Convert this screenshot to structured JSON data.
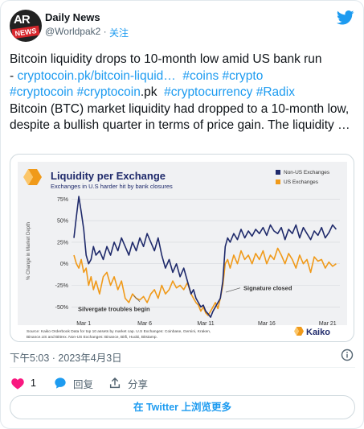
{
  "author": {
    "name": "Daily News",
    "handle": "@Worldpak2",
    "separator": "·",
    "follow_label": "关注",
    "avatar_text_top": "AR",
    "avatar_text_bottom": "NEWS"
  },
  "tweet": {
    "line1": "Bitcoin liquidity drops to 10-month low amid US bank run",
    "dash": "- ",
    "link": "cryptocoin.pk/bitcoin-liquid…",
    "tag_coins": "#coins",
    "tag_crypto": "#crypto",
    "tag_cryptocoin": "#cryptocoin",
    "tag_cryptocoin_pk_a": "#cryptocoin",
    "tag_cryptocoin_pk_b": ".pk",
    "tag_cryptocurrency": "#cryptocurrency",
    "tag_radix": "#Radix",
    "body": "Bitcoin (BTC) market liquidity had dropped to a 10-month low, despite a bullish quarter in terms of price gain. The liquidity …"
  },
  "chart_data": {
    "type": "line",
    "title": "Liquidity per Exchange",
    "subtitle": "Exchanges in U.S harder hit by bank closures",
    "ylabel": "% Change in Market Depth",
    "ylim": [
      -60,
      80
    ],
    "yticks": [
      75,
      50,
      25,
      0,
      -25,
      -50
    ],
    "ytick_labels": [
      "75%",
      "50%",
      "25%",
      "0%",
      "-25%",
      "-50%"
    ],
    "x_range": [
      0,
      22
    ],
    "xticks": [
      1,
      6,
      11,
      16,
      21
    ],
    "xtick_labels": [
      "Mar 1",
      "Mar 6",
      "Mar 11",
      "Mar 16",
      "Mar 21"
    ],
    "legend_position": "top-right",
    "grid": "horizontal",
    "series": [
      {
        "name": "Non-US Exchanges",
        "color": "#1f2a6b",
        "x": [
          0.2,
          0.4,
          0.6,
          0.8,
          1.0,
          1.2,
          1.4,
          1.6,
          1.8,
          2.0,
          2.3,
          2.6,
          2.9,
          3.2,
          3.5,
          3.8,
          4.1,
          4.4,
          4.7,
          5.0,
          5.3,
          5.6,
          5.9,
          6.2,
          6.5,
          6.8,
          7.1,
          7.4,
          7.7,
          8.0,
          8.3,
          8.6,
          8.9,
          9.2,
          9.5,
          9.8,
          10.0,
          10.2,
          10.4,
          10.6,
          10.8,
          11.0,
          11.2,
          11.4,
          11.6,
          11.8,
          12.0,
          12.2,
          12.4,
          12.6,
          12.8,
          13.0,
          13.3,
          13.6,
          13.9,
          14.2,
          14.5,
          14.8,
          15.1,
          15.4,
          15.7,
          16.0,
          16.3,
          16.6,
          16.9,
          17.2,
          17.5,
          17.8,
          18.1,
          18.4,
          18.7,
          19.0,
          19.3,
          19.6,
          19.9,
          20.2,
          20.5,
          20.8,
          21.1,
          21.4,
          21.7
        ],
        "values": [
          30,
          55,
          78,
          60,
          40,
          10,
          0,
          5,
          20,
          10,
          15,
          5,
          20,
          10,
          25,
          15,
          30,
          20,
          10,
          25,
          15,
          30,
          20,
          35,
          25,
          15,
          30,
          10,
          -5,
          5,
          -10,
          0,
          -15,
          -5,
          -20,
          -35,
          -30,
          -40,
          -45,
          -50,
          -48,
          -55,
          -58,
          -62,
          -55,
          -50,
          -45,
          -40,
          -20,
          20,
          30,
          25,
          35,
          28,
          40,
          30,
          38,
          32,
          40,
          35,
          42,
          33,
          45,
          38,
          35,
          42,
          28,
          40,
          35,
          45,
          30,
          42,
          35,
          28,
          38,
          33,
          42,
          30,
          36,
          45,
          40
        ]
      },
      {
        "name": "US Exchanges",
        "color": "#f09a1a",
        "x": [
          0.2,
          0.4,
          0.6,
          0.8,
          1.0,
          1.2,
          1.4,
          1.6,
          1.8,
          2.0,
          2.3,
          2.6,
          2.9,
          3.2,
          3.5,
          3.8,
          4.1,
          4.4,
          4.7,
          5.0,
          5.3,
          5.6,
          5.9,
          6.2,
          6.5,
          6.8,
          7.1,
          7.4,
          7.7,
          8.0,
          8.3,
          8.6,
          8.9,
          9.2,
          9.5,
          9.8,
          10.0,
          10.2,
          10.4,
          10.6,
          10.8,
          11.0,
          11.2,
          11.4,
          11.6,
          11.8,
          12.0,
          12.2,
          12.4,
          12.6,
          12.8,
          13.0,
          13.3,
          13.6,
          13.9,
          14.2,
          14.5,
          14.8,
          15.1,
          15.4,
          15.7,
          16.0,
          16.3,
          16.6,
          16.9,
          17.2,
          17.5,
          17.8,
          18.1,
          18.4,
          18.7,
          19.0,
          19.3,
          19.6,
          19.9,
          20.2,
          20.5,
          20.8,
          21.1,
          21.4,
          21.7
        ],
        "values": [
          10,
          0,
          -5,
          5,
          -10,
          -5,
          -25,
          -15,
          -30,
          -20,
          -35,
          -15,
          -10,
          -25,
          -15,
          -30,
          -20,
          -40,
          -45,
          -35,
          -40,
          -42,
          -38,
          -45,
          -35,
          -30,
          -40,
          -25,
          -35,
          -30,
          -20,
          -28,
          -25,
          -30,
          -22,
          -35,
          -40,
          -45,
          -48,
          -55,
          -50,
          -57,
          -60,
          -55,
          -50,
          -45,
          -52,
          -40,
          -25,
          0,
          5,
          -5,
          10,
          0,
          15,
          5,
          10,
          0,
          12,
          5,
          15,
          0,
          10,
          5,
          18,
          10,
          0,
          12,
          5,
          -5,
          10,
          0,
          5,
          -10,
          8,
          3,
          5,
          -5,
          2,
          -3,
          0
        ]
      }
    ],
    "annotations": [
      {
        "text": "Silvergate troubles begin",
        "x": 3.5,
        "y": -52
      },
      {
        "text": "Signature closed",
        "x": 15.5,
        "y": -28
      }
    ],
    "source_note_line1": "Source: Kaiko Orderbook Data for top 10 assets by market cap. U.S Exchanges: Coinbase, Gemini, Kraken,",
    "source_note_line2": "Binance.US and Bittrex. Non-US Exchanges: Binance, Bitfi, Huobi, Bitstamp.",
    "brand": "Kaiko",
    "brand_color": "#f09a1a"
  },
  "footer": {
    "timestamp": "下午5:03 · 2023年4月3日",
    "like_count": "1",
    "reply_label": "回复",
    "share_label": "分享",
    "read_more_label": "在 Twitter 上浏览更多"
  },
  "colors": {
    "accent": "#1d9bf0",
    "like_heart": "#f91880",
    "text_secondary": "#536471"
  }
}
